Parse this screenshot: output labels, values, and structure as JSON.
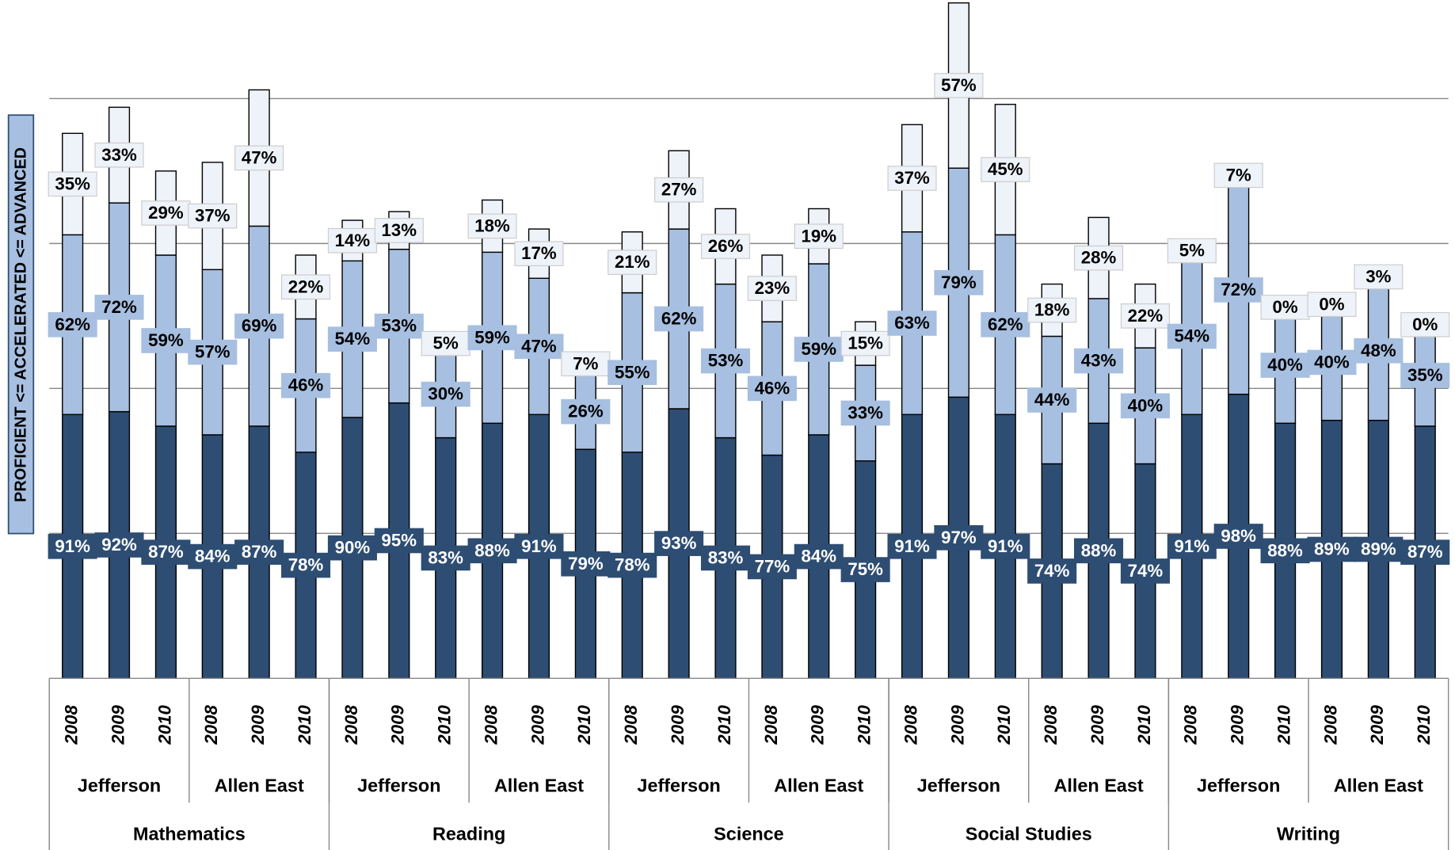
{
  "chart_data": {
    "type": "stacked_bar",
    "y_label": "PROFICIENT <= ACCELERATED <= ADVANCED",
    "categories": [
      "2008",
      "2009",
      "2010",
      "2008",
      "2009",
      "2010",
      "2008",
      "2009",
      "2010",
      "2008",
      "2009",
      "2010",
      "2008",
      "2009",
      "2010",
      "2008",
      "2009",
      "2010",
      "2008",
      "2009",
      "2010",
      "2008",
      "2009",
      "2010",
      "2008",
      "2009",
      "2010",
      "2008",
      "2009",
      "2010"
    ],
    "schools": [
      "Jefferson",
      "Allen East",
      "Jefferson",
      "Allen East",
      "Jefferson",
      "Allen East",
      "Jefferson",
      "Allen East",
      "Jefferson",
      "Allen East"
    ],
    "subjects": [
      "Mathematics",
      "Reading",
      "Science",
      "Social Studies",
      "Writing"
    ],
    "ylim": [
      0,
      234
    ],
    "yticks": [
      50,
      100,
      150,
      200
    ],
    "grid": true,
    "series": [
      {
        "color": "#2e4d73",
        "label_color": "#ffffff",
        "values": [
          91,
          92,
          87,
          84,
          87,
          78,
          90,
          95,
          83,
          88,
          91,
          79,
          78,
          93,
          83,
          77,
          84,
          75,
          91,
          97,
          91,
          74,
          88,
          74,
          91,
          98,
          88,
          89,
          89,
          87
        ],
        "value_labels": [
          "91%",
          "92%",
          "87%",
          "84%",
          "87%",
          "78%",
          "90%",
          "95%",
          "83%",
          "88%",
          "91%",
          "79%",
          "78%",
          "93%",
          "83%",
          "77%",
          "84%",
          "75%",
          "91%",
          "97%",
          "91%",
          "74%",
          "88%",
          "74%",
          "91%",
          "98%",
          "88%",
          "89%",
          "89%",
          "87%"
        ]
      },
      {
        "color": "#a7bfe0",
        "label_color": "#000000",
        "values": [
          62,
          72,
          59,
          57,
          69,
          46,
          54,
          53,
          30,
          59,
          47,
          26,
          55,
          62,
          53,
          46,
          59,
          33,
          63,
          79,
          62,
          44,
          43,
          40,
          54,
          72,
          40,
          40,
          48,
          35
        ],
        "value_labels": [
          "62%",
          "72%",
          "59%",
          "57%",
          "69%",
          "46%",
          "54%",
          "53%",
          "30%",
          "59%",
          "47%",
          "26%",
          "55%",
          "62%",
          "53%",
          "46%",
          "59%",
          "33%",
          "63%",
          "79%",
          "62%",
          "44%",
          "43%",
          "40%",
          "54%",
          "72%",
          "40%",
          "40%",
          "48%",
          "35%"
        ]
      },
      {
        "color": "#eef2f9",
        "label_color": "#000000",
        "values": [
          35,
          33,
          29,
          37,
          47,
          22,
          14,
          13,
          5,
          18,
          17,
          7,
          21,
          27,
          26,
          23,
          19,
          15,
          37,
          57,
          45,
          18,
          28,
          22,
          5,
          7,
          0,
          0,
          3,
          0
        ],
        "value_labels": [
          "35%",
          "33%",
          "29%",
          "37%",
          "47%",
          "22%",
          "14%",
          "13%",
          "5%",
          "18%",
          "17%",
          "7%",
          "21%",
          "27%",
          "26%",
          "23%",
          "19%",
          "15%",
          "37%",
          "57%",
          "45%",
          "18%",
          "28%",
          "22%",
          "5%",
          "7%",
          "0%",
          "0%",
          "3%",
          "0%"
        ]
      }
    ]
  }
}
